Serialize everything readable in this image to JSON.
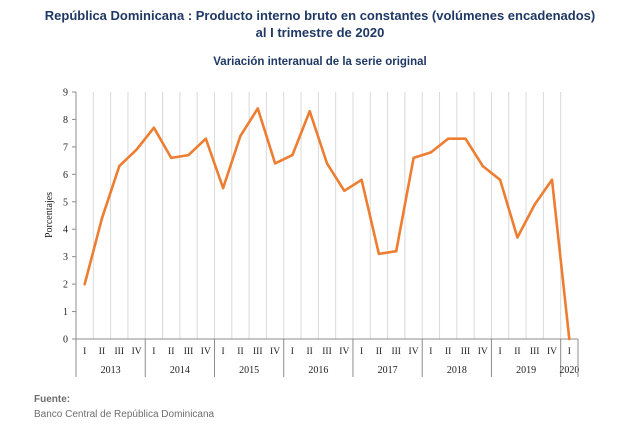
{
  "chart_data": {
    "type": "line",
    "title": "República Dominicana : Producto interno bruto en constantes (volúmenes encadenados)",
    "title_line2": "al I trimestre de 2020",
    "subtitle": "Variación interanual de la serie original",
    "ylabel": "Porcentajes",
    "xlabel": "",
    "ylim": [
      0,
      9
    ],
    "yticks": [
      "0",
      "1",
      "2",
      "3",
      "4",
      "5",
      "6",
      "7",
      "8",
      "9"
    ],
    "grid": "vertical",
    "line_color": "#ed7d31",
    "quarter_labels": [
      "I",
      "II",
      "III",
      "IV",
      "I",
      "II",
      "III",
      "IV",
      "I",
      "II",
      "III",
      "IV",
      "I",
      "II",
      "III",
      "IV",
      "I",
      "II",
      "III",
      "IV",
      "I",
      "II",
      "III",
      "IV",
      "I",
      "II",
      "III",
      "IV",
      "I"
    ],
    "year_labels": [
      "2013",
      "2014",
      "2015",
      "2016",
      "2017",
      "2018",
      "2019",
      "2020"
    ],
    "year_quarter_counts": [
      4,
      4,
      4,
      4,
      4,
      4,
      4,
      1
    ],
    "values": [
      2.0,
      4.4,
      6.3,
      6.9,
      7.7,
      6.6,
      6.7,
      7.3,
      5.5,
      7.4,
      8.4,
      6.4,
      6.7,
      8.3,
      6.4,
      5.4,
      5.8,
      3.1,
      3.2,
      6.6,
      6.8,
      7.3,
      7.3,
      6.3,
      5.8,
      3.7,
      4.9,
      5.8,
      0.0
    ]
  },
  "source": {
    "label": "Fuente:",
    "text": "Banco Central de República Dominicana"
  }
}
